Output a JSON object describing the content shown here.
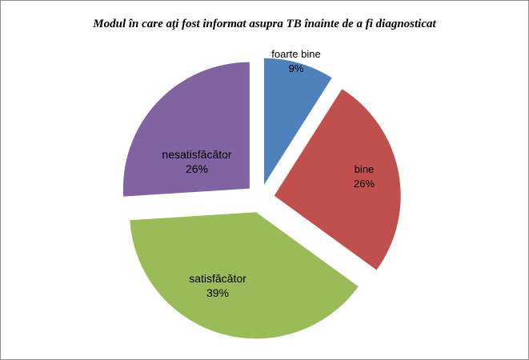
{
  "chart_data": {
    "type": "pie",
    "title": "Modul în  care aţi fost informat asupra TB înainte de a fi diagnosticat",
    "slices": [
      {
        "label": "foarte bine",
        "value": 9,
        "value_label": "9%",
        "color": "#4f81bd"
      },
      {
        "label": "bine",
        "value": 26,
        "value_label": "26%",
        "color": "#c0504d"
      },
      {
        "label": "satisfăcător",
        "value": 39,
        "value_label": "39%",
        "color": "#9bbb59"
      },
      {
        "label": "nesatisfăcător",
        "value": 26,
        "value_label": "26%",
        "color": "#8064a2"
      }
    ],
    "exploded": true,
    "start_angle_deg": 0,
    "direction": "clockwise"
  }
}
